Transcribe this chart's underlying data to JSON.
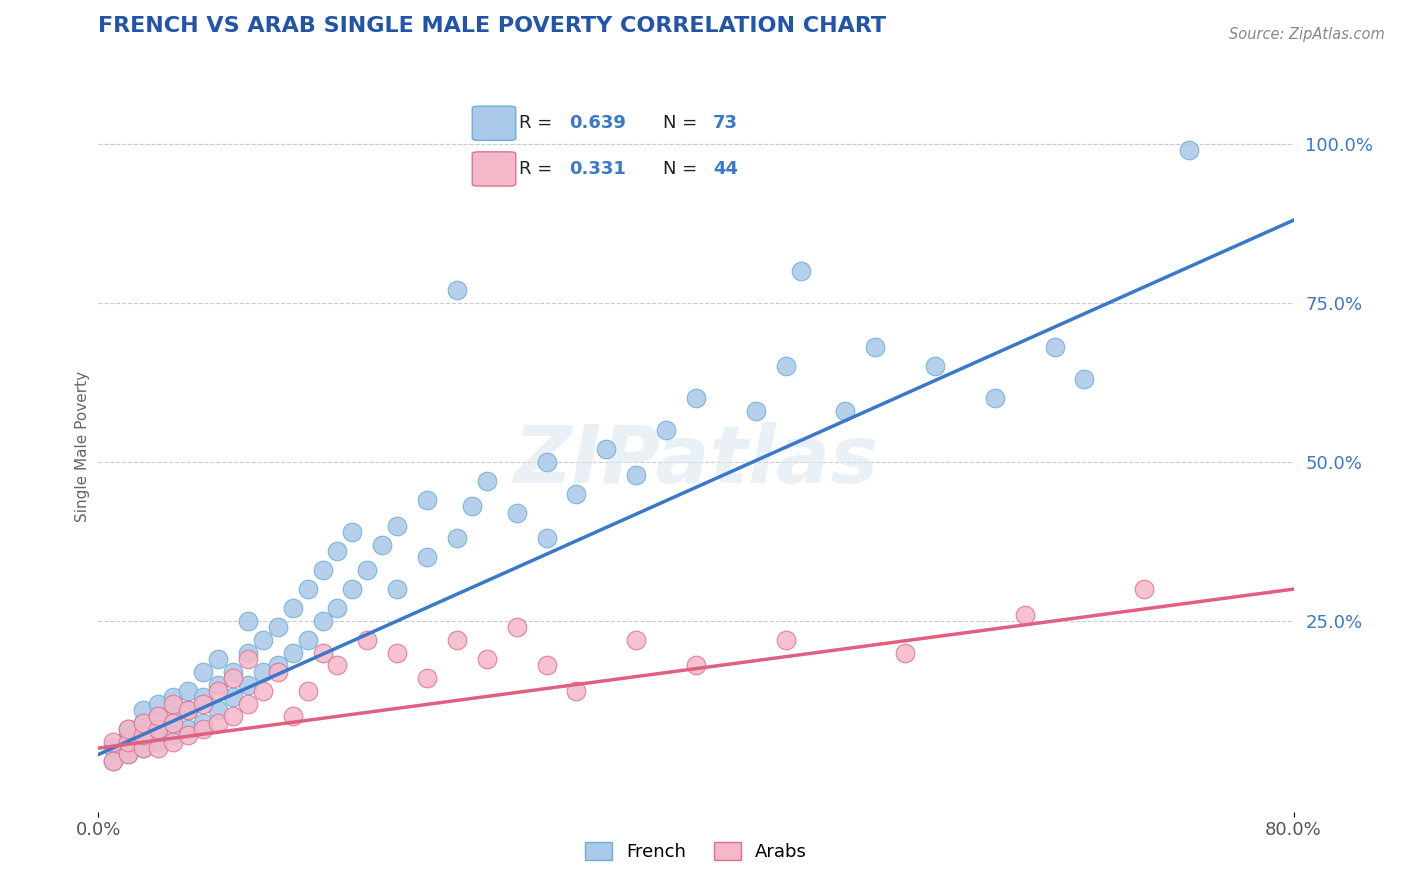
{
  "title": "FRENCH VS ARAB SINGLE MALE POVERTY CORRELATION CHART",
  "source": "Source: ZipAtlas.com",
  "ylabel": "Single Male Poverty",
  "xlim": [
    0.0,
    0.8
  ],
  "ylim": [
    -0.05,
    1.1
  ],
  "french_color": "#aac8e8",
  "french_edge_color": "#6baed6",
  "arab_color": "#f5b8c8",
  "arab_edge_color": "#e07090",
  "french_R": 0.639,
  "french_N": 73,
  "arab_R": 0.331,
  "arab_N": 44,
  "french_line_color": "#3a78c9",
  "arab_line_color": "#e06080",
  "watermark": "ZIPatlas",
  "legend_R_color": "#3a78c9",
  "legend_text_color": "#222222",
  "y_tick_color": "#3a78c9",
  "grid_color": "#cccccc",
  "french_scatter": [
    [
      0.01,
      0.05
    ],
    [
      0.01,
      0.03
    ],
    [
      0.02,
      0.07
    ],
    [
      0.02,
      0.04
    ],
    [
      0.02,
      0.06
    ],
    [
      0.02,
      0.08
    ],
    [
      0.03,
      0.05
    ],
    [
      0.03,
      0.07
    ],
    [
      0.03,
      0.09
    ],
    [
      0.03,
      0.11
    ],
    [
      0.04,
      0.06
    ],
    [
      0.04,
      0.08
    ],
    [
      0.04,
      0.1
    ],
    [
      0.04,
      0.12
    ],
    [
      0.05,
      0.07
    ],
    [
      0.05,
      0.1
    ],
    [
      0.05,
      0.13
    ],
    [
      0.06,
      0.08
    ],
    [
      0.06,
      0.11
    ],
    [
      0.06,
      0.14
    ],
    [
      0.07,
      0.09
    ],
    [
      0.07,
      0.13
    ],
    [
      0.07,
      0.17
    ],
    [
      0.08,
      0.11
    ],
    [
      0.08,
      0.15
    ],
    [
      0.08,
      0.19
    ],
    [
      0.09,
      0.13
    ],
    [
      0.09,
      0.17
    ],
    [
      0.1,
      0.15
    ],
    [
      0.1,
      0.2
    ],
    [
      0.1,
      0.25
    ],
    [
      0.11,
      0.17
    ],
    [
      0.11,
      0.22
    ],
    [
      0.12,
      0.18
    ],
    [
      0.12,
      0.24
    ],
    [
      0.13,
      0.2
    ],
    [
      0.13,
      0.27
    ],
    [
      0.14,
      0.22
    ],
    [
      0.14,
      0.3
    ],
    [
      0.15,
      0.25
    ],
    [
      0.15,
      0.33
    ],
    [
      0.16,
      0.27
    ],
    [
      0.16,
      0.36
    ],
    [
      0.17,
      0.3
    ],
    [
      0.17,
      0.39
    ],
    [
      0.18,
      0.33
    ],
    [
      0.19,
      0.37
    ],
    [
      0.2,
      0.3
    ],
    [
      0.2,
      0.4
    ],
    [
      0.22,
      0.35
    ],
    [
      0.22,
      0.44
    ],
    [
      0.24,
      0.38
    ],
    [
      0.25,
      0.43
    ],
    [
      0.26,
      0.47
    ],
    [
      0.28,
      0.42
    ],
    [
      0.3,
      0.38
    ],
    [
      0.3,
      0.5
    ],
    [
      0.32,
      0.45
    ],
    [
      0.34,
      0.52
    ],
    [
      0.36,
      0.48
    ],
    [
      0.38,
      0.55
    ],
    [
      0.4,
      0.6
    ],
    [
      0.44,
      0.58
    ],
    [
      0.46,
      0.65
    ],
    [
      0.5,
      0.58
    ],
    [
      0.52,
      0.68
    ],
    [
      0.56,
      0.65
    ],
    [
      0.6,
      0.6
    ],
    [
      0.64,
      0.68
    ],
    [
      0.66,
      0.63
    ],
    [
      0.24,
      0.77
    ],
    [
      0.47,
      0.8
    ],
    [
      0.73,
      0.99
    ]
  ],
  "arab_scatter": [
    [
      0.01,
      0.03
    ],
    [
      0.01,
      0.06
    ],
    [
      0.02,
      0.04
    ],
    [
      0.02,
      0.06
    ],
    [
      0.02,
      0.08
    ],
    [
      0.03,
      0.05
    ],
    [
      0.03,
      0.07
    ],
    [
      0.03,
      0.09
    ],
    [
      0.04,
      0.05
    ],
    [
      0.04,
      0.08
    ],
    [
      0.04,
      0.1
    ],
    [
      0.05,
      0.06
    ],
    [
      0.05,
      0.09
    ],
    [
      0.05,
      0.12
    ],
    [
      0.06,
      0.07
    ],
    [
      0.06,
      0.11
    ],
    [
      0.07,
      0.08
    ],
    [
      0.07,
      0.12
    ],
    [
      0.08,
      0.09
    ],
    [
      0.08,
      0.14
    ],
    [
      0.09,
      0.1
    ],
    [
      0.09,
      0.16
    ],
    [
      0.1,
      0.12
    ],
    [
      0.1,
      0.19
    ],
    [
      0.11,
      0.14
    ],
    [
      0.12,
      0.17
    ],
    [
      0.13,
      0.1
    ],
    [
      0.14,
      0.14
    ],
    [
      0.15,
      0.2
    ],
    [
      0.16,
      0.18
    ],
    [
      0.18,
      0.22
    ],
    [
      0.2,
      0.2
    ],
    [
      0.22,
      0.16
    ],
    [
      0.24,
      0.22
    ],
    [
      0.26,
      0.19
    ],
    [
      0.28,
      0.24
    ],
    [
      0.3,
      0.18
    ],
    [
      0.32,
      0.14
    ],
    [
      0.36,
      0.22
    ],
    [
      0.4,
      0.18
    ],
    [
      0.46,
      0.22
    ],
    [
      0.54,
      0.2
    ],
    [
      0.62,
      0.26
    ],
    [
      0.7,
      0.3
    ]
  ]
}
